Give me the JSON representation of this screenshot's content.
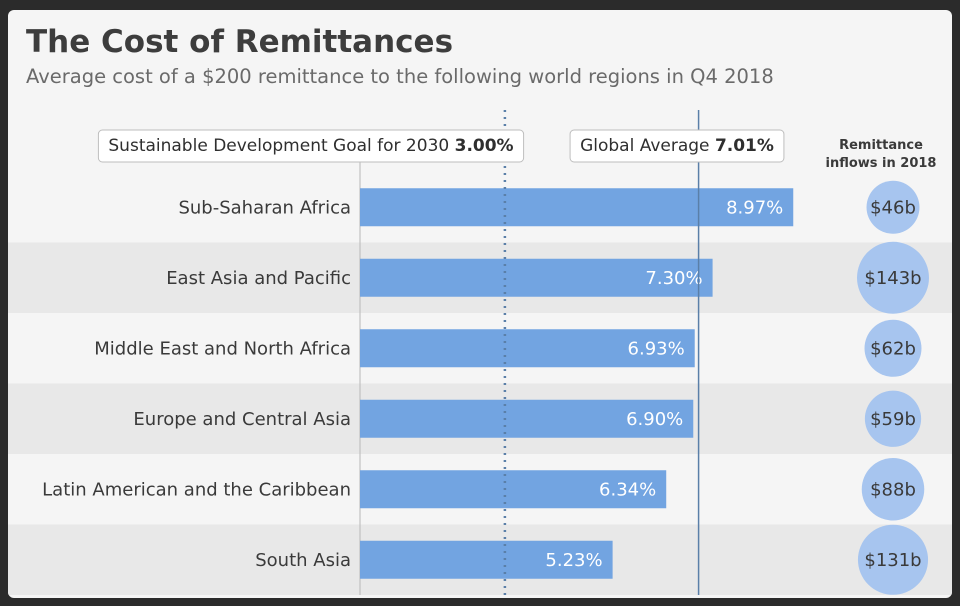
{
  "header": {
    "title": "The Cost of Remittances",
    "subtitle": "Average cost of a $200 remittance to the following world regions in Q4 2018"
  },
  "colors": {
    "bar": "#72a4e1",
    "band": "#e8e8e8",
    "bubble": "#a7c5ef",
    "reference_line": "#5a7fa8"
  },
  "chart_data": {
    "type": "bar",
    "orientation": "horizontal",
    "categories": [
      "Sub-Saharan Africa",
      "East Asia and Pacific",
      "Middle East and North Africa",
      "Europe and Central Asia",
      "Latin American and the Caribbean",
      "South Asia"
    ],
    "values": [
      8.97,
      7.3,
      6.93,
      6.9,
      6.34,
      5.23
    ],
    "value_labels": [
      "8.97%",
      "7.30%",
      "6.93%",
      "6.90%",
      "6.34%",
      "5.23%"
    ],
    "unit": "%",
    "xlim": [
      0,
      11.7
    ],
    "reference_lines": [
      {
        "label": "Sustainable Development Goal for 2030",
        "value": 3.0,
        "value_label": "3.00%",
        "style": "dotted"
      },
      {
        "label": "Global Average",
        "value": 7.01,
        "value_label": "7.01%",
        "style": "solid"
      }
    ],
    "inflows": {
      "title_lines": [
        "Remittance",
        "inflows in 2018"
      ],
      "values": [
        46,
        143,
        62,
        59,
        88,
        131
      ],
      "labels": [
        "$46b",
        "$143b",
        "$62b",
        "$59b",
        "$88b",
        "$131b"
      ]
    }
  }
}
